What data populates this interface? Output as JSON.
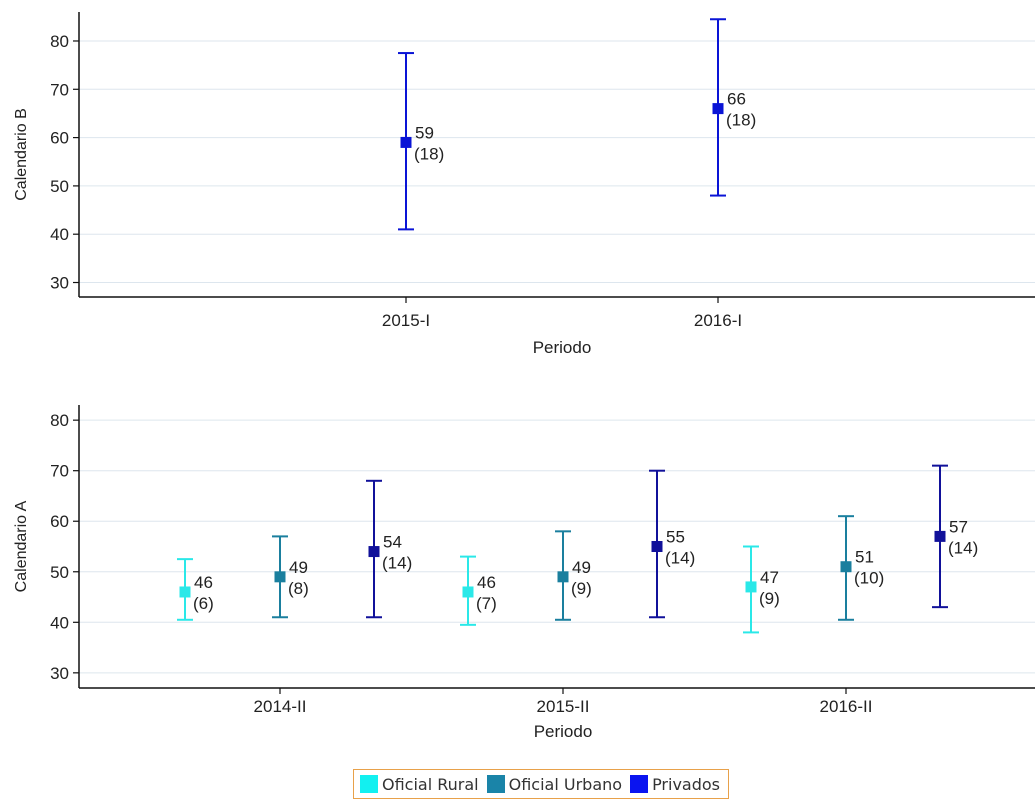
{
  "chart_data": [
    {
      "type": "errorbar",
      "ylabel": "Calendario B",
      "xlabel": "Periodo",
      "ylim": [
        27,
        86
      ],
      "yticks": [
        30,
        40,
        50,
        60,
        70,
        80
      ],
      "grid": true,
      "categories": [
        "2015-I",
        "2016-I"
      ],
      "series": [
        {
          "name": "Privados",
          "color": "#0a14d6",
          "points": [
            {
              "category": "2015-I",
              "value": 59,
              "n": "(18)",
              "low": 41,
              "high": 77.5,
              "label": "59"
            },
            {
              "category": "2016-I",
              "value": 66,
              "n": "(18)",
              "low": 48,
              "high": 84.5,
              "label": "66"
            }
          ]
        }
      ]
    },
    {
      "type": "errorbar",
      "ylabel": "Calendario A",
      "xlabel": "Periodo",
      "ylim": [
        27,
        83
      ],
      "yticks": [
        30,
        40,
        50,
        60,
        70,
        80
      ],
      "grid": true,
      "categories": [
        "2014-II",
        "2015-II",
        "2016-II"
      ],
      "series": [
        {
          "name": "Oficial Rural",
          "color": "#2ae8e8",
          "points": [
            {
              "category": "2014-II",
              "value": 46,
              "n": "(6)",
              "low": 40.5,
              "high": 52.5,
              "label": "46"
            },
            {
              "category": "2015-II",
              "value": 46,
              "n": "(7)",
              "low": 39.5,
              "high": 53,
              "label": "46"
            },
            {
              "category": "2016-II",
              "value": 47,
              "n": "(9)",
              "low": 38,
              "high": 55,
              "label": "47"
            }
          ]
        },
        {
          "name": "Oficial Urbano",
          "color": "#1a7f9e",
          "points": [
            {
              "category": "2014-II",
              "value": 49,
              "n": "(8)",
              "low": 41,
              "high": 57,
              "label": "49"
            },
            {
              "category": "2015-II",
              "value": 49,
              "n": "(9)",
              "low": 40.5,
              "high": 58,
              "label": "49"
            },
            {
              "category": "2016-II",
              "value": 51,
              "n": "(10)",
              "low": 40.5,
              "high": 61,
              "label": "51"
            }
          ]
        },
        {
          "name": "Privados",
          "color": "#11119a",
          "points": [
            {
              "category": "2014-II",
              "value": 54,
              "n": "(14)",
              "low": 41,
              "high": 68,
              "label": "54"
            },
            {
              "category": "2015-II",
              "value": 55,
              "n": "(14)",
              "low": 41,
              "high": 70,
              "label": "55"
            },
            {
              "category": "2016-II",
              "value": 57,
              "n": "(14)",
              "low": 43,
              "high": 71,
              "label": "57"
            }
          ]
        }
      ]
    }
  ],
  "legend": [
    {
      "label": "Oficial Rural",
      "color": "#12f0f0"
    },
    {
      "label": "Oficial Urbano",
      "color": "#1a84a8"
    },
    {
      "label": "Privados",
      "color": "#0a14f0"
    }
  ]
}
